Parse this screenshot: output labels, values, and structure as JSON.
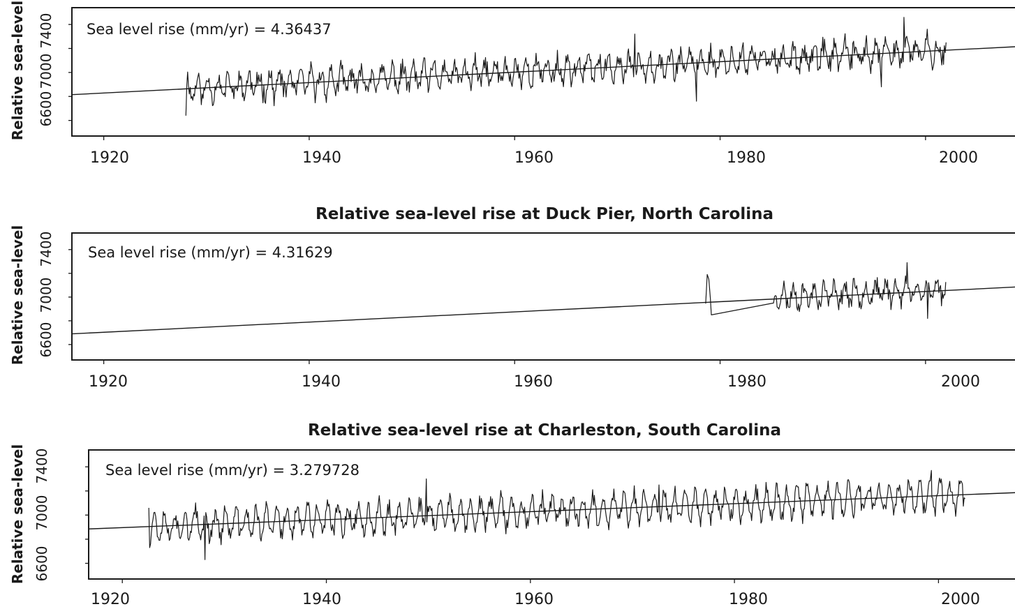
{
  "chart_data": [
    {
      "type": "line",
      "title": "",
      "ylabel": "Relative sea-level",
      "annotation": "Sea level rise (mm/yr) = 4.36437",
      "xlim": [
        1916.9,
        2010
      ],
      "ylim": [
        6470,
        7540
      ],
      "xticks": [
        1920,
        1940,
        1960,
        1980,
        2000
      ],
      "yticks": [
        6600,
        6800,
        7000,
        7200,
        7400
      ],
      "ytick_labels": [
        "6600",
        "7000",
        "7400"
      ],
      "grid": false,
      "trend": {
        "x": [
          1916.9,
          2010
        ],
        "y": [
          6815,
          7220
        ]
      },
      "series": [
        {
          "start": 1928.0,
          "end": 2002.0,
          "base_at_start": 6865,
          "slope_per_year": 4.36,
          "amplitude": 85,
          "noise": 70,
          "seed": 11,
          "y_at_start": 6640,
          "anomalies": [
            {
              "x": 1977.7,
              "y": 6760
            },
            {
              "x": 1995.7,
              "y": 6880
            },
            {
              "x": 1997.9,
              "y": 7460
            },
            {
              "x": 1971.7,
              "y": 7320
            }
          ]
        }
      ]
    },
    {
      "type": "line",
      "title": "Relative sea-level rise at Duck Pier, North Carolina",
      "ylabel": "Relative sea-level",
      "annotation": "Sea level rise (mm/yr) = 4.31629",
      "xlim": [
        1916.9,
        2010
      ],
      "ylim": [
        6470,
        7540
      ],
      "xticks": [
        1920,
        1940,
        1960,
        1980,
        2000
      ],
      "yticks": [
        6600,
        6800,
        7000,
        7200,
        7400
      ],
      "ytick_labels": [
        "6600",
        "7000",
        "7400"
      ],
      "grid": false,
      "trend": {
        "x": [
          1916.9,
          2010
        ],
        "y": [
          6690,
          7090
        ]
      },
      "series": [
        {
          "start": 1985.3,
          "end": 2002.0,
          "base_at_start": 7000,
          "slope_per_year": 4.3,
          "amplitude": 80,
          "noise": 60,
          "seed": 23,
          "prefix": [
            {
              "x": 1978.6,
              "y": 6945
            },
            {
              "x": 1978.75,
              "y": 7190
            },
            {
              "x": 1978.9,
              "y": 7150
            },
            {
              "x": 1979.05,
              "y": 6990
            },
            {
              "x": 1979.15,
              "y": 6850
            },
            {
              "x": 1985.2,
              "y": 6950
            }
          ],
          "anomalies": [
            {
              "x": 1998.2,
              "y": 7290
            },
            {
              "x": 2000.2,
              "y": 6820
            }
          ]
        }
      ]
    },
    {
      "type": "line",
      "title": "Relative sea-level rise at Charleston, South Carolina",
      "ylabel": "Relative sea-level",
      "annotation": "Sea level rise (mm/yr) = 3.279728",
      "xlim": [
        1916.7,
        2008.8
      ],
      "ylim": [
        6470,
        7540
      ],
      "xticks": [
        1920,
        1940,
        1960,
        1980,
        2000
      ],
      "yticks": [
        6600,
        6800,
        7000,
        7200,
        7400
      ],
      "ytick_labels": [
        "6600",
        "7000",
        "7400"
      ],
      "grid": false,
      "trend": {
        "x": [
          1916.7,
          2008.8
        ],
        "y": [
          6885,
          7190
        ]
      },
      "series": [
        {
          "start": 1922.6,
          "end": 2002.6,
          "base_at_start": 6905,
          "slope_per_year": 3.28,
          "amplitude": 110,
          "noise": 60,
          "seed": 37,
          "y_at_start": 7060,
          "anomalies": [
            {
              "x": 1928.1,
              "y": 6630
            },
            {
              "x": 1949.8,
              "y": 7300
            },
            {
              "x": 1972.6,
              "y": 7250
            },
            {
              "x": 1999.3,
              "y": 7370
            }
          ]
        }
      ]
    }
  ]
}
